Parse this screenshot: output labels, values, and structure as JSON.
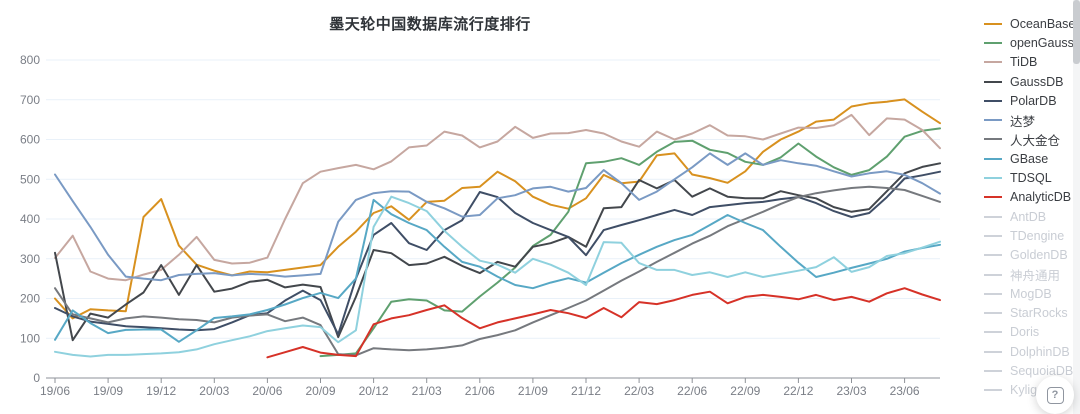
{
  "title": "墨天轮中国数据库流行度排行",
  "help_button": {
    "icon": "?"
  },
  "axis_colors": {
    "grid": "#e9f1f9",
    "axis_line": "#8e9298",
    "tick_text": "#7a7e86",
    "disabled": "#ced2d9"
  },
  "chart_data": {
    "type": "line",
    "title": "墨天轮中国数据库流行度排行",
    "ylim": [
      0,
      800
    ],
    "y_ticks": [
      0,
      100,
      200,
      300,
      400,
      500,
      600,
      700,
      800
    ],
    "x_tick_labels": [
      "19/06",
      "19/09",
      "19/12",
      "20/03",
      "20/06",
      "20/09",
      "20/12",
      "21/03",
      "21/06",
      "21/09",
      "21/12",
      "22/03",
      "22/06",
      "22/09",
      "22/12",
      "23/03",
      "23/06"
    ],
    "months_per_tick": 3,
    "n_points": 51,
    "grid": true,
    "legend_position": "right",
    "series": [
      {
        "name": "OceanBase",
        "color": "#d8911f",
        "enabled": true,
        "values": [
          200,
          150,
          173,
          170,
          168,
          405,
          450,
          333,
          285,
          270,
          258,
          268,
          266,
          272,
          278,
          284,
          330,
          368,
          415,
          432,
          398,
          443,
          446,
          478,
          481,
          519,
          495,
          456,
          436,
          426,
          452,
          511,
          490,
          494,
          560,
          565,
          512,
          503,
          491,
          520,
          569,
          600,
          620,
          645,
          650,
          683,
          691,
          695,
          701,
          670,
          641
        ]
      },
      {
        "name": "openGauss",
        "color": "#5fa06f",
        "enabled": true,
        "values": [
          null,
          null,
          null,
          null,
          null,
          null,
          null,
          null,
          null,
          null,
          null,
          null,
          null,
          null,
          null,
          55,
          58,
          62,
          125,
          192,
          198,
          195,
          170,
          167,
          205,
          240,
          278,
          332,
          360,
          418,
          540,
          544,
          553,
          536,
          569,
          594,
          597,
          574,
          566,
          544,
          536,
          555,
          590,
          557,
          530,
          511,
          523,
          557,
          607,
          622,
          628
        ]
      },
      {
        "name": "TiDB",
        "color": "#c6a7a0",
        "enabled": true,
        "values": [
          302,
          358,
          268,
          250,
          246,
          260,
          272,
          310,
          355,
          297,
          288,
          290,
          303,
          400,
          490,
          519,
          528,
          536,
          525,
          545,
          580,
          585,
          620,
          610,
          580,
          595,
          632,
          604,
          615,
          616,
          624,
          615,
          595,
          582,
          620,
          600,
          615,
          636,
          610,
          608,
          600,
          615,
          630,
          629,
          636,
          662,
          611,
          653,
          650,
          624,
          578
        ]
      },
      {
        "name": "GaussDB",
        "color": "#43474c",
        "enabled": true,
        "values": [
          315,
          95,
          162,
          152,
          185,
          215,
          284,
          209,
          284,
          217,
          225,
          242,
          247,
          228,
          235,
          229,
          103,
          204,
          322,
          314,
          284,
          288,
          305,
          282,
          264,
          292,
          280,
          330,
          339,
          355,
          330,
          427,
          430,
          498,
          477,
          498,
          456,
          477,
          456,
          452,
          452,
          470,
          460,
          452,
          430,
          418,
          425,
          470,
          515,
          531,
          540
        ]
      },
      {
        "name": "PolarDB",
        "color": "#3f4e66",
        "enabled": true,
        "values": [
          176,
          155,
          142,
          136,
          130,
          128,
          125,
          122,
          120,
          123,
          140,
          158,
          163,
          195,
          220,
          196,
          110,
          250,
          360,
          390,
          339,
          322,
          372,
          397,
          468,
          455,
          415,
          390,
          372,
          355,
          309,
          372,
          385,
          397,
          410,
          423,
          410,
          430,
          435,
          440,
          443,
          450,
          455,
          440,
          420,
          405,
          415,
          455,
          502,
          510,
          519
        ]
      },
      {
        "name": "达梦",
        "color": "#7a9ac4",
        "enabled": true,
        "values": [
          512,
          445,
          380,
          310,
          255,
          250,
          246,
          259,
          262,
          264,
          258,
          262,
          260,
          255,
          258,
          262,
          393,
          448,
          465,
          470,
          469,
          443,
          427,
          406,
          410,
          452,
          460,
          477,
          481,
          469,
          478,
          523,
          490,
          448,
          469,
          500,
          530,
          565,
          536,
          565,
          536,
          548,
          540,
          534,
          520,
          507,
          515,
          520,
          511,
          490,
          464
        ]
      },
      {
        "name": "人大金仓",
        "color": "#76797e",
        "enabled": true,
        "values": [
          226,
          160,
          150,
          140,
          150,
          155,
          152,
          148,
          146,
          140,
          152,
          157,
          160,
          143,
          152,
          133,
          60,
          57,
          75,
          72,
          70,
          72,
          76,
          82,
          98,
          108,
          120,
          140,
          158,
          176,
          195,
          220,
          245,
          268,
          292,
          315,
          338,
          358,
          382,
          400,
          418,
          438,
          455,
          465,
          472,
          478,
          481,
          478,
          473,
          458,
          443
        ]
      },
      {
        "name": "GBase",
        "color": "#57a8c5",
        "enabled": true,
        "values": [
          96,
          170,
          138,
          113,
          121,
          122,
          122,
          91,
          120,
          151,
          155,
          160,
          171,
          185,
          201,
          214,
          201,
          250,
          448,
          412,
          390,
          372,
          330,
          292,
          280,
          255,
          234,
          226,
          240,
          251,
          240,
          265,
          289,
          310,
          330,
          347,
          360,
          385,
          410,
          390,
          372,
          330,
          290,
          254,
          265,
          277,
          288,
          300,
          318,
          327,
          335
        ]
      },
      {
        "name": "TDSQL",
        "color": "#8fd1de",
        "enabled": true,
        "values": [
          66,
          58,
          54,
          58,
          58,
          60,
          62,
          65,
          72,
          85,
          95,
          105,
          118,
          125,
          132,
          128,
          90,
          120,
          380,
          456,
          440,
          420,
          370,
          330,
          295,
          285,
          265,
          300,
          285,
          265,
          234,
          342,
          340,
          289,
          272,
          272,
          259,
          266,
          254,
          266,
          254,
          262,
          270,
          279,
          304,
          267,
          279,
          307,
          314,
          328,
          343
        ]
      },
      {
        "name": "AnalyticDB",
        "color": "#d63228",
        "enabled": true,
        "values": [
          null,
          null,
          null,
          null,
          null,
          null,
          null,
          null,
          null,
          null,
          null,
          null,
          52,
          65,
          78,
          64,
          58,
          55,
          135,
          150,
          158,
          171,
          183,
          151,
          125,
          140,
          150,
          160,
          171,
          163,
          151,
          176,
          153,
          191,
          186,
          196,
          209,
          217,
          188,
          204,
          209,
          204,
          198,
          209,
          196,
          204,
          192,
          213,
          226,
          210,
          196
        ]
      },
      {
        "name": "AntDB",
        "color": "#ced2d9",
        "enabled": false,
        "values": []
      },
      {
        "name": "TDengine",
        "color": "#ced2d9",
        "enabled": false,
        "values": []
      },
      {
        "name": "GoldenDB",
        "color": "#ced2d9",
        "enabled": false,
        "values": []
      },
      {
        "name": "神舟通用",
        "color": "#ced2d9",
        "enabled": false,
        "values": []
      },
      {
        "name": "MogDB",
        "color": "#ced2d9",
        "enabled": false,
        "values": []
      },
      {
        "name": "StarRocks",
        "color": "#ced2d9",
        "enabled": false,
        "values": []
      },
      {
        "name": "Doris",
        "color": "#ced2d9",
        "enabled": false,
        "values": []
      },
      {
        "name": "DolphinDB",
        "color": "#ced2d9",
        "enabled": false,
        "values": []
      },
      {
        "name": "SequoiaDB",
        "color": "#ced2d9",
        "enabled": false,
        "values": []
      },
      {
        "name": "Kyligence",
        "color": "#ced2d9",
        "enabled": false,
        "values": []
      }
    ]
  }
}
